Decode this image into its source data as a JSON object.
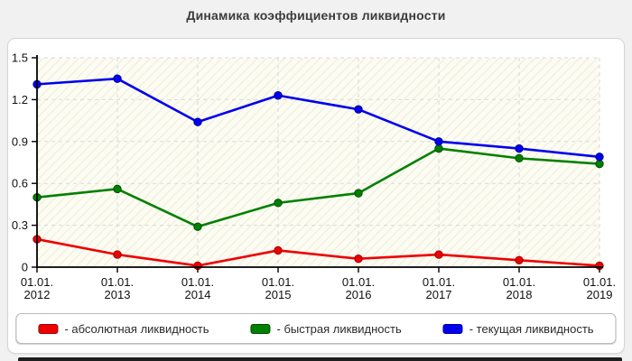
{
  "title": "Динамика коэффициентов ликвидности",
  "chart_data": {
    "type": "line",
    "title": "Динамика коэффициентов ликвидности",
    "category_prefix": "01.01.",
    "categories": [
      "2012",
      "2013",
      "2014",
      "2015",
      "2016",
      "2017",
      "2018",
      "2019"
    ],
    "series": [
      {
        "name": "абсолютная ликвидность",
        "legend_label": "- абсолютная ликвидность",
        "color": "#ee0000",
        "edge_color": "#9c0000",
        "values": [
          0.2,
          0.09,
          0.01,
          0.12,
          0.06,
          0.09,
          0.05,
          0.01
        ]
      },
      {
        "name": "быстрая ликвидность",
        "legend_label": "- быстрая ликвидность",
        "color": "#008000",
        "edge_color": "#004d00",
        "values": [
          0.5,
          0.56,
          0.29,
          0.46,
          0.53,
          0.85,
          0.78,
          0.74
        ]
      },
      {
        "name": "текущая ликвидность",
        "legend_label": "- текущая ликвидность",
        "color": "#0000ee",
        "edge_color": "#000099",
        "values": [
          1.31,
          1.35,
          1.04,
          1.23,
          1.13,
          0.9,
          0.85,
          0.79
        ]
      }
    ],
    "y_ticks": [
      0,
      0.3,
      0.6,
      0.9,
      1.2,
      1.5
    ],
    "y_tick_labels": [
      "0",
      "0.3",
      "0.6",
      "0.9",
      "1.2",
      "1.5"
    ],
    "ylim": [
      0,
      1.5
    ],
    "xlabel": "",
    "ylabel": "",
    "grid": "dashed",
    "legend_position": "bottom",
    "plot_background": "hatched",
    "colors": {
      "grid": "#d9d9d9",
      "axis": "#000000",
      "plot_bg": "#fcfcf2",
      "plot_hatch": "#eeeede"
    }
  }
}
